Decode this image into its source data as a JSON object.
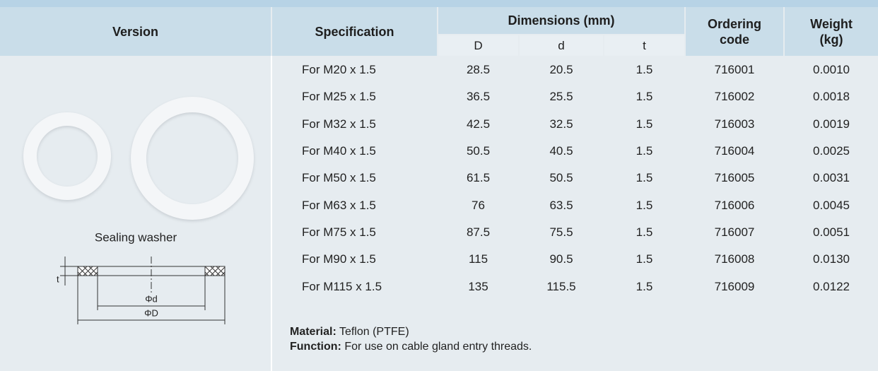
{
  "table": {
    "header": {
      "version": "Version",
      "specification": "Specification",
      "dimensions": "Dimensions (mm)",
      "D": "D",
      "d": "d",
      "t": "t",
      "ordering_code": "Ordering code",
      "weight": "Weight (kg)"
    },
    "rows": [
      [
        "For  M20 x 1.5",
        "28.5",
        "20.5",
        "1.5",
        "716001",
        "0.0010"
      ],
      [
        "For  M25 x 1.5",
        "36.5",
        "25.5",
        "1.5",
        "716002",
        "0.0018"
      ],
      [
        "For  M32 x 1.5",
        "42.5",
        "32.5",
        "1.5",
        "716003",
        "0.0019"
      ],
      [
        "For  M40 x 1.5",
        "50.5",
        "40.5",
        "1.5",
        "716004",
        "0.0025"
      ],
      [
        "For  M50 x 1.5",
        "61.5",
        "50.5",
        "1.5",
        "716005",
        "0.0031"
      ],
      [
        "For  M63 x 1.5",
        "76",
        "63.5",
        "1.5",
        "716006",
        "0.0045"
      ],
      [
        "For  M75 x 1.5",
        "87.5",
        "75.5",
        "1.5",
        "716007",
        "0.0051"
      ],
      [
        "For  M90 x 1.5",
        "115",
        "90.5",
        "1.5",
        "716008",
        "0.0130"
      ],
      [
        "For  M115 x 1.5",
        "135",
        "115.5",
        "1.5",
        "716009",
        "0.0122"
      ]
    ]
  },
  "product": {
    "caption": "Sealing washer",
    "diagram": {
      "t": "t",
      "inner": "Φd",
      "outer": "ΦD"
    }
  },
  "notes": {
    "material_label": "Material:",
    "material": "Teflon (PTFE)",
    "function_label": "Function:",
    "function": "For use on cable gland entry threads."
  }
}
